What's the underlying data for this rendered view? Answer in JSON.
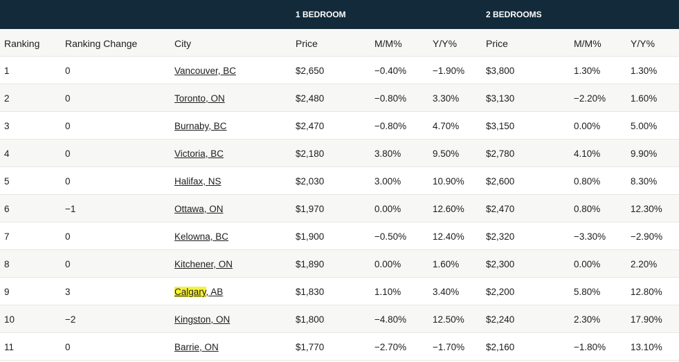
{
  "group_headers": {
    "one_bedroom": "1 BEDROOM",
    "two_bedrooms": "2 BEDROOMS"
  },
  "columns": [
    "Ranking",
    "Ranking Change",
    "City",
    "Price",
    "M/M%",
    "Y/Y%",
    "Price",
    "M/M%",
    "Y/Y%"
  ],
  "rows": [
    {
      "rank": "1",
      "change": "0",
      "city": "Vancouver, BC",
      "p1": "$2,650",
      "mm1": "−0.40%",
      "yy1": "−1.90%",
      "p2": "$3,800",
      "mm2": "1.30%",
      "yy2": "1.30%"
    },
    {
      "rank": "2",
      "change": "0",
      "city": "Toronto, ON",
      "p1": "$2,480",
      "mm1": "−0.80%",
      "yy1": "3.30%",
      "p2": "$3,130",
      "mm2": "−2.20%",
      "yy2": "1.60%"
    },
    {
      "rank": "3",
      "change": "0",
      "city": "Burnaby, BC",
      "p1": "$2,470",
      "mm1": "−0.80%",
      "yy1": "4.70%",
      "p2": "$3,150",
      "mm2": "0.00%",
      "yy2": "5.00%"
    },
    {
      "rank": "4",
      "change": "0",
      "city": "Victoria, BC",
      "p1": "$2,180",
      "mm1": "3.80%",
      "yy1": "9.50%",
      "p2": "$2,780",
      "mm2": "4.10%",
      "yy2": "9.90%"
    },
    {
      "rank": "5",
      "change": "0",
      "city": "Halifax, NS",
      "p1": "$2,030",
      "mm1": "3.00%",
      "yy1": "10.90%",
      "p2": "$2,600",
      "mm2": "0.80%",
      "yy2": "8.30%"
    },
    {
      "rank": "6",
      "change": "−1",
      "city": "Ottawa, ON",
      "p1": "$1,970",
      "mm1": "0.00%",
      "yy1": "12.60%",
      "p2": "$2,470",
      "mm2": "0.80%",
      "yy2": "12.30%"
    },
    {
      "rank": "7",
      "change": "0",
      "city": "Kelowna, BC",
      "p1": "$1,900",
      "mm1": "−0.50%",
      "yy1": "12.40%",
      "p2": "$2,320",
      "mm2": "−3.30%",
      "yy2": "−2.90%"
    },
    {
      "rank": "8",
      "change": "0",
      "city": "Kitchener, ON",
      "p1": "$1,890",
      "mm1": "0.00%",
      "yy1": "1.60%",
      "p2": "$2,300",
      "mm2": "0.00%",
      "yy2": "2.20%"
    },
    {
      "rank": "9",
      "change": "3",
      "city": "Calgary, AB",
      "highlight": "Calgary",
      "p1": "$1,830",
      "mm1": "1.10%",
      "yy1": "3.40%",
      "p2": "$2,200",
      "mm2": "5.80%",
      "yy2": "12.80%"
    },
    {
      "rank": "10",
      "change": "−2",
      "city": "Kingston, ON",
      "p1": "$1,800",
      "mm1": "−4.80%",
      "yy1": "12.50%",
      "p2": "$2,240",
      "mm2": "2.30%",
      "yy2": "17.90%"
    },
    {
      "rank": "11",
      "change": "0",
      "city": "Barrie, ON",
      "p1": "$1,770",
      "mm1": "−2.70%",
      "yy1": "−1.70%",
      "p2": "$2,160",
      "mm2": "−1.80%",
      "yy2": "13.10%"
    }
  ],
  "colors": {
    "header_bg": "#132a3a",
    "alt_row": "#f7f7f5",
    "highlight": "#f6f23a"
  }
}
